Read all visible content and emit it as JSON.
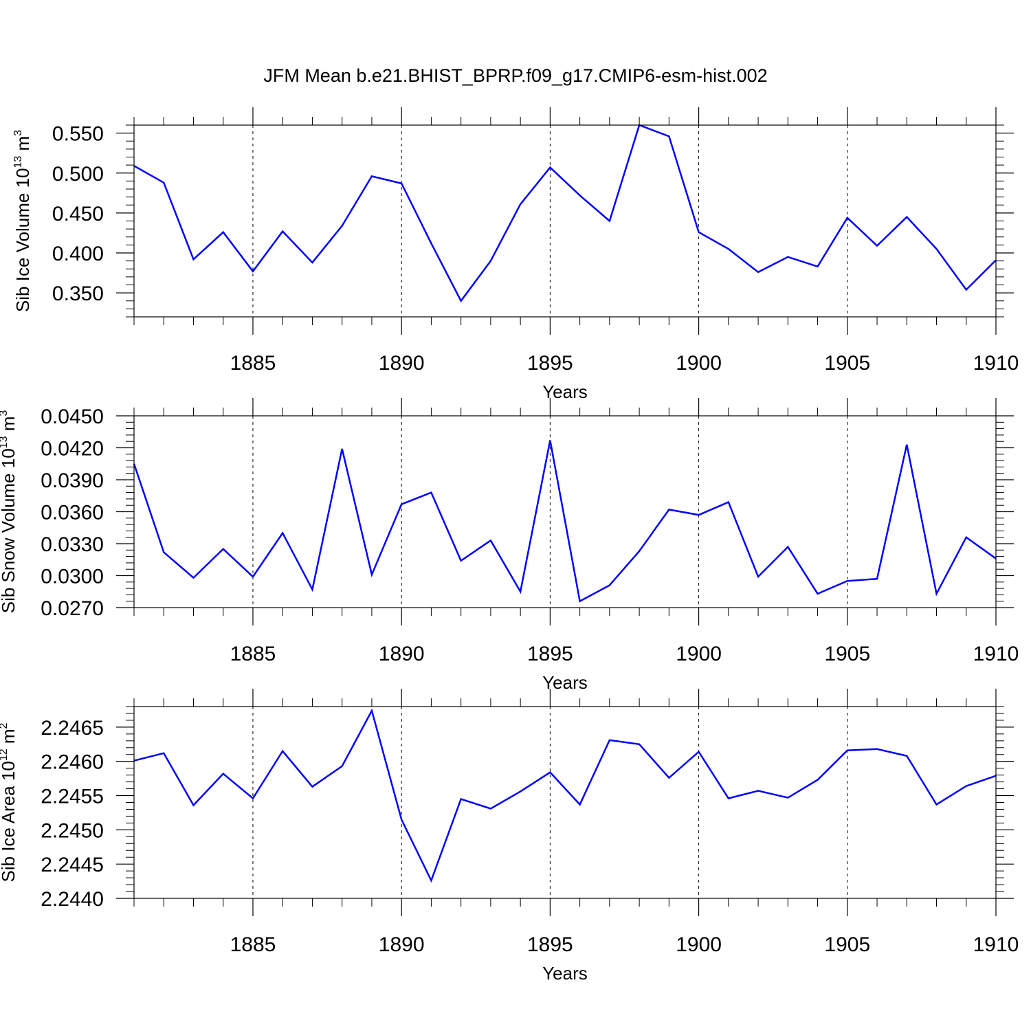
{
  "title": "JFM Mean b.e21.BHIST_BPRP.f09_g17.CMIP6-esm-hist.002",
  "line_color": "#0000ff",
  "chart_data": [
    {
      "type": "line",
      "name": "ice-volume",
      "ylabel": {
        "prefix": "Sib Ice Volume 10",
        "exp": "13",
        "mid": " m",
        "exp2": "3"
      },
      "xlabel": "Years",
      "xlim": [
        1881,
        1910
      ],
      "ylim": [
        0.32,
        0.56
      ],
      "yticks": [
        0.35,
        0.4,
        0.45,
        0.5,
        0.55
      ],
      "ytick_labels": [
        "0.350",
        "0.400",
        "0.450",
        "0.500",
        "0.550"
      ],
      "yminor": 0.01,
      "xticks": [
        1885,
        1890,
        1895,
        1900,
        1905,
        1910
      ],
      "xtick_labels": [
        "1885",
        "1890",
        "1895",
        "1900",
        "1905",
        "1910"
      ],
      "grid_x": [
        1885,
        1890,
        1895,
        1900,
        1905
      ],
      "x": [
        1881,
        1882,
        1883,
        1884,
        1885,
        1886,
        1887,
        1888,
        1889,
        1890,
        1891,
        1892,
        1893,
        1894,
        1895,
        1896,
        1897,
        1898,
        1899,
        1900,
        1901,
        1902,
        1903,
        1904,
        1905,
        1906,
        1907,
        1908,
        1909,
        1910
      ],
      "values": [
        0.509,
        0.488,
        0.392,
        0.426,
        0.377,
        0.427,
        0.388,
        0.434,
        0.496,
        0.487,
        0.412,
        0.34,
        0.39,
        0.461,
        0.507,
        0.472,
        0.44,
        0.56,
        0.546,
        0.426,
        0.405,
        0.376,
        0.395,
        0.383,
        0.444,
        0.409,
        0.445,
        0.405,
        0.354,
        0.391
      ]
    },
    {
      "type": "line",
      "name": "snow-volume",
      "ylabel": {
        "prefix": "Sib Snow Volume 10",
        "exp": "13",
        "mid": " m",
        "exp2": "3"
      },
      "xlabel": "Years",
      "xlim": [
        1881,
        1910
      ],
      "ylim": [
        0.027,
        0.045
      ],
      "yticks": [
        0.027,
        0.03,
        0.033,
        0.036,
        0.039,
        0.042,
        0.045
      ],
      "ytick_labels": [
        "0.0270",
        "0.0300",
        "0.0330",
        "0.0360",
        "0.0390",
        "0.0420",
        "0.0450"
      ],
      "yminor": 0.0006,
      "xticks": [
        1885,
        1890,
        1895,
        1900,
        1905,
        1910
      ],
      "xtick_labels": [
        "1885",
        "1890",
        "1895",
        "1900",
        "1905",
        "1910"
      ],
      "grid_x": [
        1885,
        1890,
        1895,
        1900,
        1905
      ],
      "x": [
        1881,
        1882,
        1883,
        1884,
        1885,
        1886,
        1887,
        1888,
        1889,
        1890,
        1891,
        1892,
        1893,
        1894,
        1895,
        1896,
        1897,
        1898,
        1899,
        1900,
        1901,
        1902,
        1903,
        1904,
        1905,
        1906,
        1907,
        1908,
        1909,
        1910
      ],
      "values": [
        0.0405,
        0.0322,
        0.0298,
        0.0325,
        0.0299,
        0.034,
        0.0287,
        0.0419,
        0.0301,
        0.0367,
        0.0378,
        0.0314,
        0.0333,
        0.0285,
        0.0427,
        0.0276,
        0.0291,
        0.0323,
        0.0362,
        0.0357,
        0.0369,
        0.0299,
        0.0327,
        0.0283,
        0.0295,
        0.0297,
        0.0423,
        0.0283,
        0.0336,
        0.0316
      ]
    },
    {
      "type": "line",
      "name": "ice-area",
      "ylabel": {
        "prefix": "Sib Ice Area 10",
        "exp": "12",
        "mid": " m",
        "exp2": "2"
      },
      "xlabel": "Years",
      "xlim": [
        1881,
        1910
      ],
      "ylim": [
        2.244,
        2.2468
      ],
      "yticks": [
        2.244,
        2.2445,
        2.245,
        2.2455,
        2.246,
        2.2465
      ],
      "ytick_labels": [
        "2.2440",
        "2.2445",
        "2.2450",
        "2.2455",
        "2.2460",
        "2.2465"
      ],
      "yminor": 0.0001,
      "xticks": [
        1885,
        1890,
        1895,
        1900,
        1905,
        1910
      ],
      "xtick_labels": [
        "1885",
        "1890",
        "1895",
        "1900",
        "1905",
        "1910"
      ],
      "grid_x": [
        1885,
        1890,
        1895,
        1900,
        1905
      ],
      "x": [
        1881,
        1882,
        1883,
        1884,
        1885,
        1886,
        1887,
        1888,
        1889,
        1890,
        1891,
        1892,
        1893,
        1894,
        1895,
        1896,
        1897,
        1898,
        1899,
        1900,
        1901,
        1902,
        1903,
        1904,
        1905,
        1906,
        1907,
        1908,
        1909,
        1910
      ],
      "values": [
        2.24601,
        2.24612,
        2.24536,
        2.24582,
        2.24546,
        2.24615,
        2.24563,
        2.24593,
        2.24674,
        2.24515,
        2.24426,
        2.24545,
        2.24531,
        2.24556,
        2.24584,
        2.24537,
        2.24631,
        2.24625,
        2.24576,
        2.24614,
        2.24546,
        2.24557,
        2.24547,
        2.24573,
        2.24616,
        2.24618,
        2.24608,
        2.24537,
        2.24564,
        2.24579
      ]
    }
  ]
}
